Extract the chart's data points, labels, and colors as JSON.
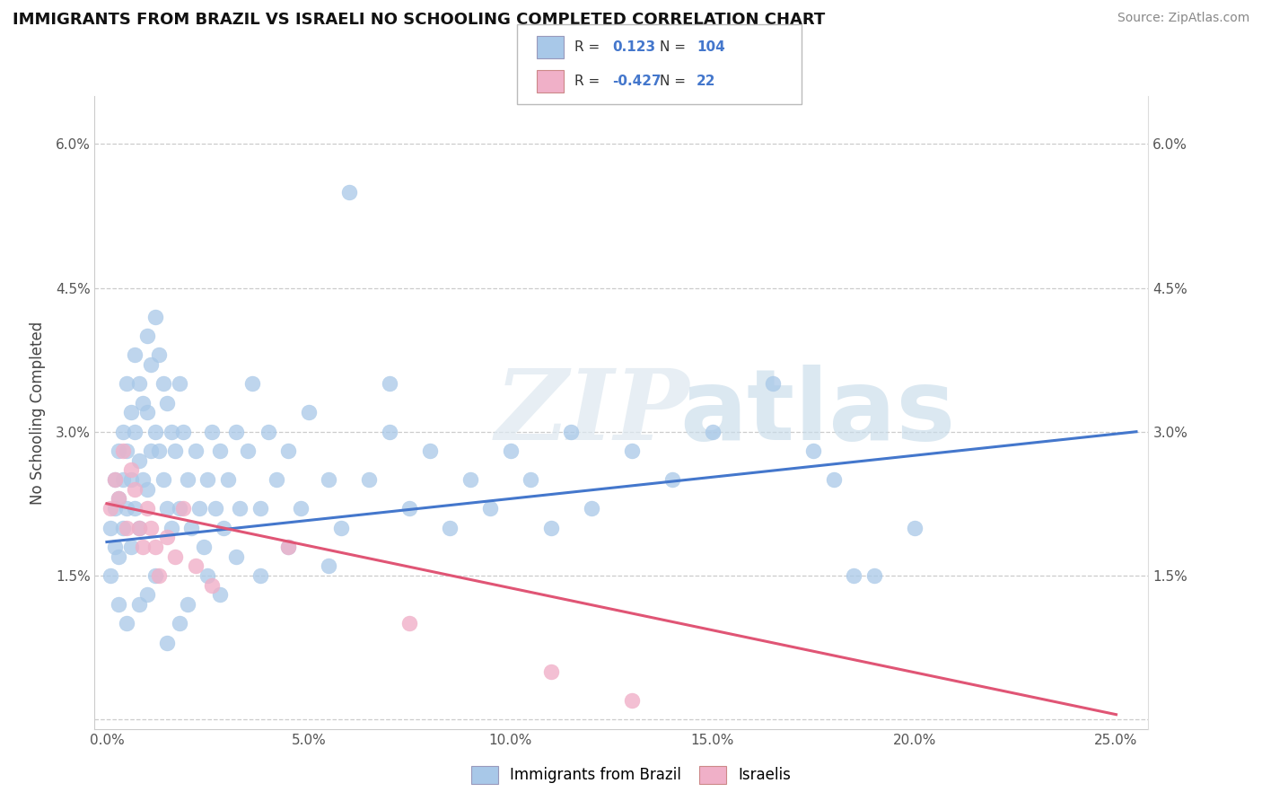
{
  "title": "IMMIGRANTS FROM BRAZIL VS ISRAELI NO SCHOOLING COMPLETED CORRELATION CHART",
  "source": "Source: ZipAtlas.com",
  "ylabel": "No Schooling Completed",
  "x_tick_vals": [
    0.0,
    0.05,
    0.1,
    0.15,
    0.2,
    0.25
  ],
  "x_tick_labels": [
    "0.0%",
    "5.0%",
    "10.0%",
    "15.0%",
    "20.0%",
    "25.0%"
  ],
  "y_tick_vals": [
    0.0,
    0.015,
    0.03,
    0.045,
    0.06
  ],
  "y_tick_labels": [
    "",
    "1.5%",
    "3.0%",
    "4.5%",
    "6.0%"
  ],
  "xlim": [
    -0.003,
    0.258
  ],
  "ylim": [
    -0.001,
    0.065
  ],
  "r_blue": "0.123",
  "n_blue": "104",
  "r_pink": "-0.427",
  "n_pink": "22",
  "blue_color": "#a8c8e8",
  "pink_color": "#f0b0c8",
  "blue_line_color": "#4477cc",
  "pink_line_color": "#e05575",
  "legend_label_blue": "Immigrants from Brazil",
  "legend_label_pink": "Israelis",
  "blue_trend_x": [
    0.0,
    0.255
  ],
  "blue_trend_y": [
    0.0185,
    0.03
  ],
  "pink_trend_x": [
    0.0,
    0.25
  ],
  "pink_trend_y": [
    0.0225,
    0.0005
  ],
  "blue_x": [
    0.001,
    0.001,
    0.002,
    0.002,
    0.002,
    0.003,
    0.003,
    0.003,
    0.003,
    0.004,
    0.004,
    0.004,
    0.005,
    0.005,
    0.005,
    0.006,
    0.006,
    0.006,
    0.007,
    0.007,
    0.007,
    0.008,
    0.008,
    0.008,
    0.009,
    0.009,
    0.01,
    0.01,
    0.01,
    0.011,
    0.011,
    0.012,
    0.012,
    0.013,
    0.013,
    0.014,
    0.014,
    0.015,
    0.015,
    0.016,
    0.016,
    0.017,
    0.018,
    0.018,
    0.019,
    0.02,
    0.021,
    0.022,
    0.023,
    0.024,
    0.025,
    0.026,
    0.027,
    0.028,
    0.029,
    0.03,
    0.032,
    0.033,
    0.035,
    0.036,
    0.038,
    0.04,
    0.042,
    0.045,
    0.048,
    0.05,
    0.055,
    0.058,
    0.06,
    0.065,
    0.07,
    0.075,
    0.08,
    0.085,
    0.09,
    0.095,
    0.1,
    0.105,
    0.11,
    0.115,
    0.12,
    0.13,
    0.14,
    0.15,
    0.165,
    0.175,
    0.18,
    0.185,
    0.19,
    0.2,
    0.005,
    0.008,
    0.01,
    0.012,
    0.015,
    0.018,
    0.02,
    0.025,
    0.028,
    0.032,
    0.038,
    0.045,
    0.055,
    0.07
  ],
  "blue_y": [
    0.02,
    0.015,
    0.022,
    0.018,
    0.025,
    0.028,
    0.023,
    0.017,
    0.012,
    0.03,
    0.025,
    0.02,
    0.035,
    0.028,
    0.022,
    0.032,
    0.025,
    0.018,
    0.038,
    0.03,
    0.022,
    0.035,
    0.027,
    0.02,
    0.033,
    0.025,
    0.04,
    0.032,
    0.024,
    0.037,
    0.028,
    0.042,
    0.03,
    0.038,
    0.028,
    0.035,
    0.025,
    0.033,
    0.022,
    0.03,
    0.02,
    0.028,
    0.035,
    0.022,
    0.03,
    0.025,
    0.02,
    0.028,
    0.022,
    0.018,
    0.025,
    0.03,
    0.022,
    0.028,
    0.02,
    0.025,
    0.03,
    0.022,
    0.028,
    0.035,
    0.022,
    0.03,
    0.025,
    0.028,
    0.022,
    0.032,
    0.025,
    0.02,
    0.055,
    0.025,
    0.03,
    0.022,
    0.028,
    0.02,
    0.025,
    0.022,
    0.028,
    0.025,
    0.02,
    0.03,
    0.022,
    0.028,
    0.025,
    0.03,
    0.035,
    0.028,
    0.025,
    0.015,
    0.015,
    0.02,
    0.01,
    0.012,
    0.013,
    0.015,
    0.008,
    0.01,
    0.012,
    0.015,
    0.013,
    0.017,
    0.015,
    0.018,
    0.016,
    0.035
  ],
  "pink_x": [
    0.001,
    0.002,
    0.003,
    0.004,
    0.005,
    0.006,
    0.007,
    0.008,
    0.009,
    0.01,
    0.011,
    0.012,
    0.013,
    0.015,
    0.017,
    0.019,
    0.022,
    0.026,
    0.045,
    0.075,
    0.11,
    0.13
  ],
  "pink_y": [
    0.022,
    0.025,
    0.023,
    0.028,
    0.02,
    0.026,
    0.024,
    0.02,
    0.018,
    0.022,
    0.02,
    0.018,
    0.015,
    0.019,
    0.017,
    0.022,
    0.016,
    0.014,
    0.018,
    0.01,
    0.005,
    0.002
  ]
}
